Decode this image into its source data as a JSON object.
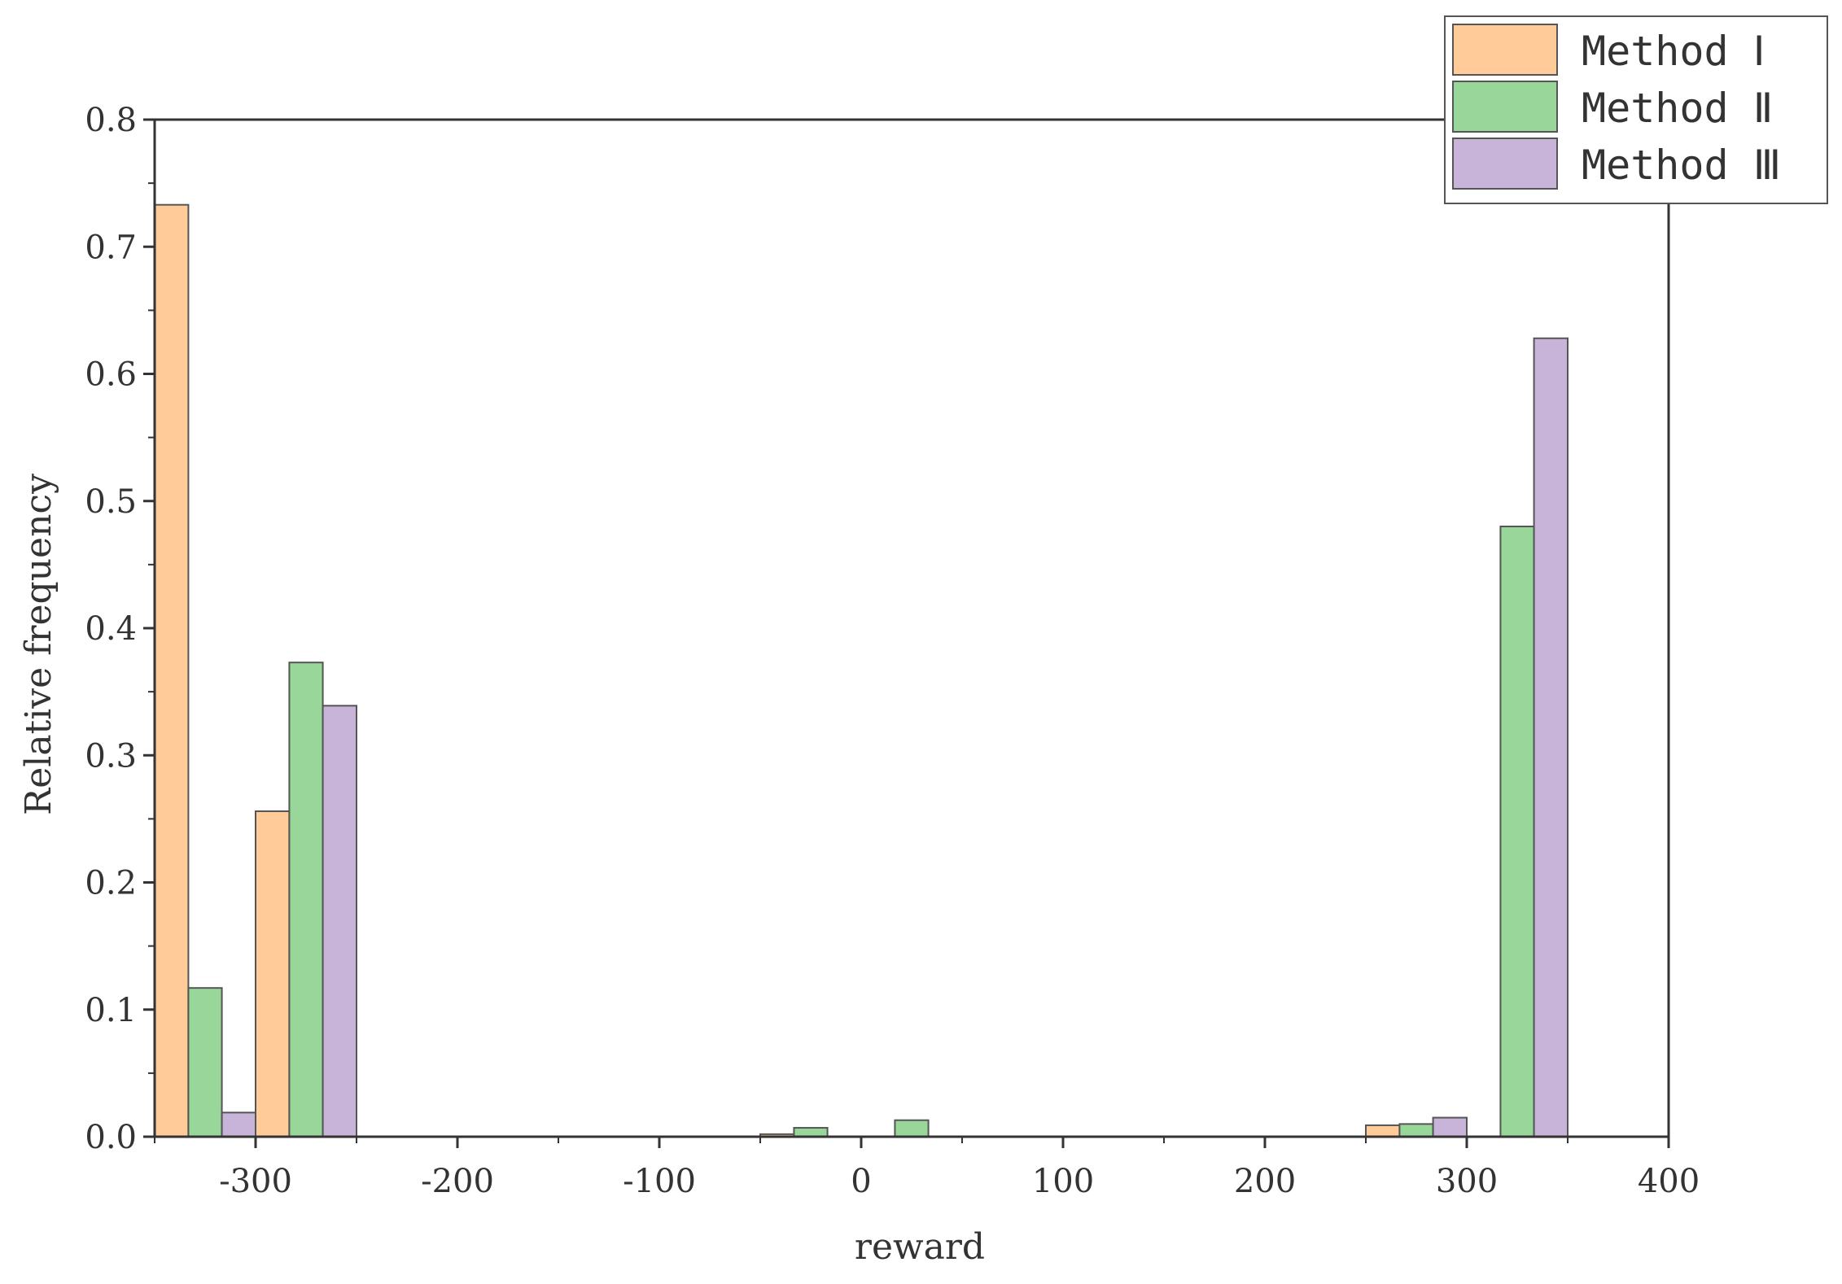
{
  "chart_data": {
    "type": "bar",
    "xlabel": "reward",
    "ylabel": "Relative frequency",
    "xlim": [
      -350,
      400
    ],
    "ylim": [
      0,
      0.8
    ],
    "xticks": [
      -300,
      -200,
      -100,
      0,
      100,
      200,
      300,
      400
    ],
    "yticks": [
      "0.0",
      "0.1",
      "0.2",
      "0.3",
      "0.4",
      "0.5",
      "0.6",
      "0.7",
      "0.8"
    ],
    "yticks_values": [
      0,
      0.1,
      0.2,
      0.3,
      0.4,
      0.5,
      0.6,
      0.7,
      0.8
    ],
    "grid": false,
    "legend_position": "top-right",
    "series": [
      {
        "name": "Method Ⅰ",
        "color": "#FFCC99",
        "bars": [
          {
            "x0": -350,
            "x1": -333.3,
            "value": 0.733
          },
          {
            "x0": -300,
            "x1": -283.3,
            "value": 0.256
          },
          {
            "x0": -50,
            "x1": -33.3,
            "value": 0.002
          },
          {
            "x0": 250,
            "x1": 266.7,
            "value": 0.009
          }
        ]
      },
      {
        "name": "Method Ⅱ",
        "color": "#99D699",
        "bars": [
          {
            "x0": -333.3,
            "x1": -316.7,
            "value": 0.117
          },
          {
            "x0": -283.3,
            "x1": -266.7,
            "value": 0.373
          },
          {
            "x0": -33.3,
            "x1": -16.7,
            "value": 0.007
          },
          {
            "x0": 16.7,
            "x1": 33.3,
            "value": 0.013
          },
          {
            "x0": 266.7,
            "x1": 283.3,
            "value": 0.01
          },
          {
            "x0": 316.7,
            "x1": 333.3,
            "value": 0.48
          }
        ]
      },
      {
        "name": "Method Ⅲ",
        "color": "#C8B3D9",
        "bars": [
          {
            "x0": -316.7,
            "x1": -300,
            "value": 0.019
          },
          {
            "x0": -266.7,
            "x1": -250,
            "value": 0.339
          },
          {
            "x0": 283.3,
            "x1": 300,
            "value": 0.015
          },
          {
            "x0": 333.3,
            "x1": 350,
            "value": 0.628
          }
        ]
      }
    ]
  }
}
